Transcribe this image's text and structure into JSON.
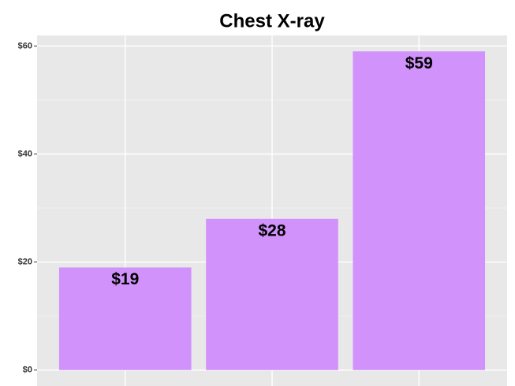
{
  "chart_data": {
    "type": "bar",
    "title": "Chest X-ray",
    "categories": [
      null,
      null,
      null
    ],
    "values": [
      19,
      28,
      59
    ],
    "value_labels": [
      "$19",
      "$28",
      "$59"
    ],
    "color": "#d192fb",
    "ylim": [
      -2.95,
      61.95
    ],
    "yticks": [
      {
        "value": 0,
        "label": "$0"
      },
      {
        "value": 20,
        "label": "$20"
      },
      {
        "value": 40,
        "label": "$40"
      },
      {
        "value": 60,
        "label": "$60"
      }
    ],
    "grid": true
  }
}
